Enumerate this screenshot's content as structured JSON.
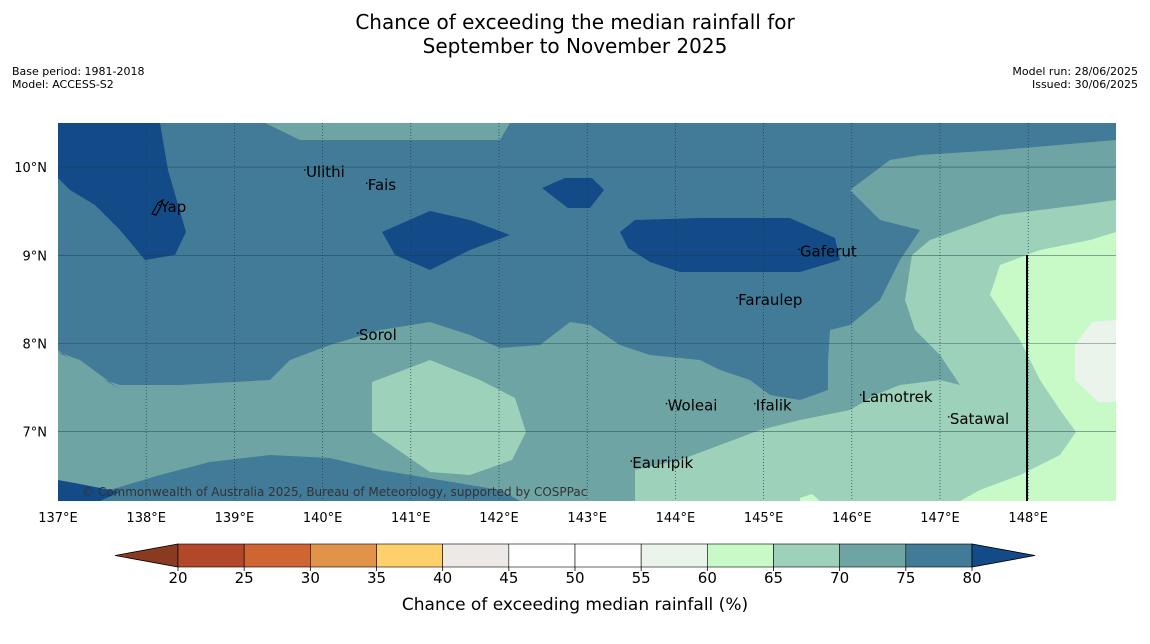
{
  "title_line1": "Chance of exceeding the median rainfall for",
  "title_line2": "September to November 2025",
  "meta_left": [
    "Base period: 1981-2018",
    "Model: ACCESS-S2"
  ],
  "meta_right": [
    "Model run: 28/06/2025",
    "Issued: 30/06/2025"
  ],
  "copyright": "© Commonwealth of Australia 2025, Bureau of Meteorology, supported by COSPPac",
  "map": {
    "lon_labels": [
      "137°E",
      "138°E",
      "139°E",
      "140°E",
      "141°E",
      "142°E",
      "143°E",
      "144°E",
      "145°E",
      "146°E",
      "147°E",
      "148°E"
    ],
    "lat_labels": [
      "10°N",
      "9°N",
      "8°N",
      "7°N"
    ],
    "places": [
      {
        "name": "Ulithi",
        "lon": 139.8,
        "lat": 9.9
      },
      {
        "name": "Fais",
        "lon": 140.5,
        "lat": 9.75
      },
      {
        "name": "Yap",
        "lon": 138.15,
        "lat": 9.5
      },
      {
        "name": "Gaferut",
        "lon": 145.4,
        "lat": 9.0
      },
      {
        "name": "Faraulep",
        "lon": 144.7,
        "lat": 8.45
      },
      {
        "name": "Sorol",
        "lon": 140.4,
        "lat": 8.05
      },
      {
        "name": "Lamotrek",
        "lon": 146.1,
        "lat": 7.35
      },
      {
        "name": "Woleai",
        "lon": 143.9,
        "lat": 7.25
      },
      {
        "name": "Ifalik",
        "lon": 144.9,
        "lat": 7.25
      },
      {
        "name": "Satawal",
        "lon": 147.1,
        "lat": 7.1
      },
      {
        "name": "Eauripik",
        "lon": 143.5,
        "lat": 6.6
      }
    ]
  },
  "colorbar": {
    "label": "Chance of exceeding median rainfall (%)",
    "ticks": [
      "20",
      "25",
      "30",
      "35",
      "40",
      "45",
      "50",
      "55",
      "60",
      "65",
      "70",
      "75",
      "80"
    ],
    "colors": {
      "under": "#8a3a20",
      "c20_25": "#b2472a",
      "c25_30": "#cf6532",
      "c30_35": "#e2934a",
      "c35_40": "#fdd06a",
      "c40_45": "#ece9e6",
      "c45_50": "#ffffff",
      "c50_55": "#ffffff",
      "c55_60": "#eaf4ea",
      "c60_65": "#c8fac8",
      "c65_70": "#9dd1b9",
      "c70_75": "#6ea4a4",
      "c75_80": "#417b98",
      "over": "#134b88"
    }
  }
}
